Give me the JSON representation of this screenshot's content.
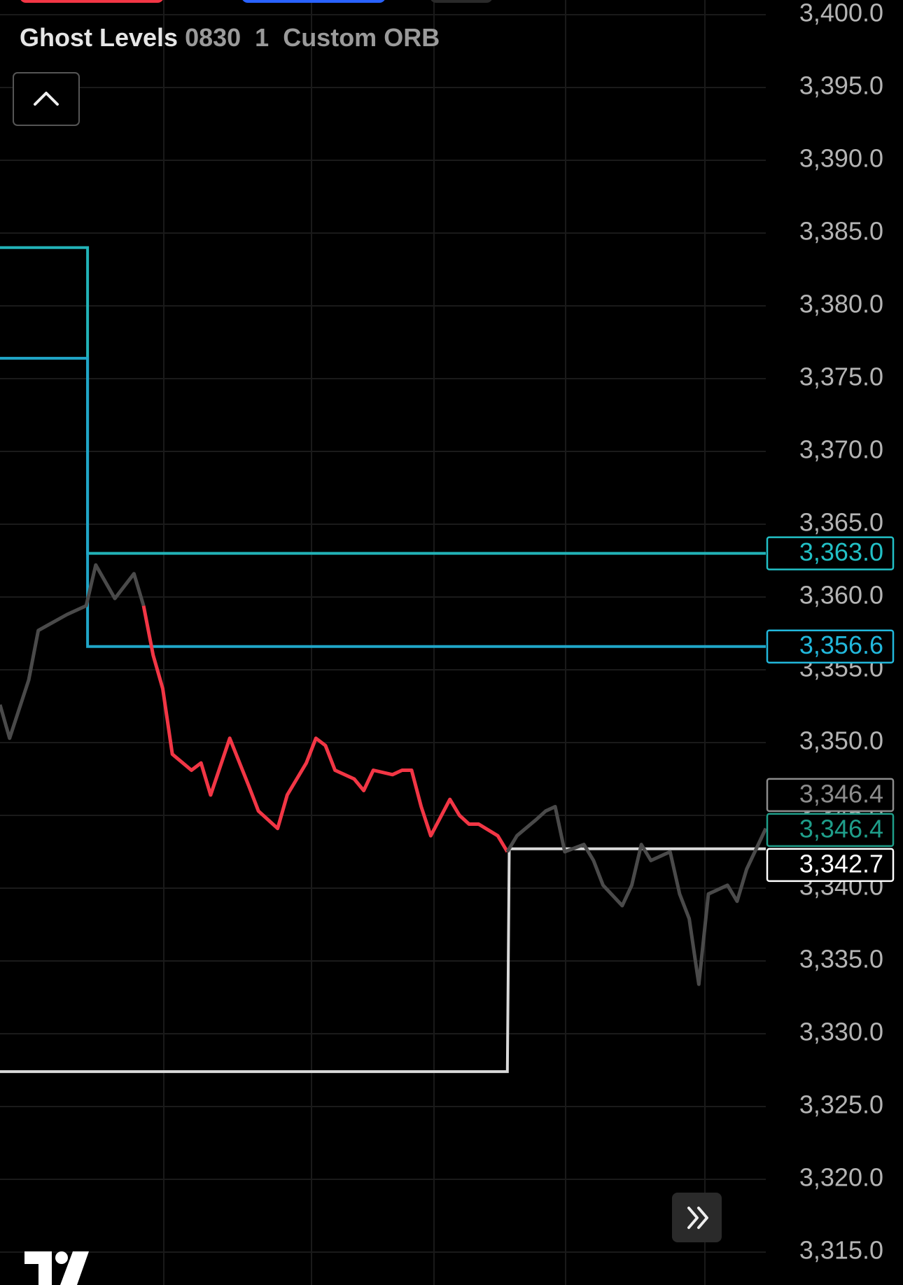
{
  "chart_data": {
    "type": "line",
    "indicator_name": "Ghost Levels",
    "indicator_params": "0830  1  Custom ORB",
    "ylim": [
      3312.74,
      3401.01
    ],
    "xlim": [
      0,
      80
    ],
    "grid": true,
    "yticks": [
      {
        "value": 3400,
        "label": "3,400.0"
      },
      {
        "value": 3395,
        "label": "3,395.0"
      },
      {
        "value": 3390,
        "label": "3,390.0"
      },
      {
        "value": 3385,
        "label": "3,385.0"
      },
      {
        "value": 3380,
        "label": "3,380.0"
      },
      {
        "value": 3375,
        "label": "3,375.0"
      },
      {
        "value": 3370,
        "label": "3,370.0"
      },
      {
        "value": 3365,
        "label": "3,365.0"
      },
      {
        "value": 3360,
        "label": "3,360.0"
      },
      {
        "value": 3355,
        "label": "3,355.0"
      },
      {
        "value": 3350,
        "label": "3,350.0"
      },
      {
        "value": 3345,
        "label": "3,345.0"
      },
      {
        "value": 3340,
        "label": "3,340.0"
      },
      {
        "value": 3335,
        "label": "3,335.0"
      },
      {
        "value": 3330,
        "label": "3,330.0"
      },
      {
        "value": 3325,
        "label": "3,325.0"
      },
      {
        "value": 3320,
        "label": "3,320.0"
      },
      {
        "value": 3315,
        "label": "3,315.0"
      }
    ],
    "series": [
      {
        "color": "#4a4a4a",
        "x": [
          0,
          1,
          3,
          4,
          7,
          9,
          10,
          12,
          14,
          15
        ],
        "values": [
          3352.6,
          3350.3,
          3354.3,
          3357.7,
          3358.8,
          3359.4,
          3362.2,
          3359.9,
          3361.6,
          3359.4
        ]
      },
      {
        "color": "#f23645",
        "x": [
          15,
          16,
          17,
          18,
          20,
          21,
          22,
          24,
          26,
          27,
          29,
          30,
          32,
          33,
          34,
          35,
          37,
          38,
          39,
          41,
          42,
          43,
          44,
          45,
          47,
          48,
          49,
          50,
          52,
          53
        ],
        "values": [
          3359.4,
          3356.0,
          3353.7,
          3349.2,
          3348.1,
          3348.6,
          3346.4,
          3350.3,
          3347.0,
          3345.3,
          3344.1,
          3346.4,
          3348.6,
          3350.3,
          3349.8,
          3348.1,
          3347.5,
          3346.7,
          3348.1,
          3347.8,
          3348.1,
          3348.1,
          3345.6,
          3343.6,
          3346.1,
          3345.0,
          3344.4,
          3344.4,
          3343.6,
          3342.5
        ]
      },
      {
        "color": "#4a4a4a",
        "x": [
          53,
          54,
          56,
          57,
          58,
          59,
          61,
          62,
          63,
          65,
          66,
          67,
          68,
          70,
          71,
          72,
          73,
          74,
          76,
          77,
          78,
          80
        ],
        "values": [
          3342.5,
          3343.6,
          3344.7,
          3345.3,
          3345.6,
          3342.5,
          3343.0,
          3341.9,
          3340.2,
          3338.8,
          3340.2,
          3343.0,
          3341.9,
          3342.5,
          3339.6,
          3337.9,
          3333.4,
          3339.6,
          3340.2,
          3339.1,
          3341.3,
          3344.1
        ]
      }
    ],
    "levels": [
      {
        "color": "#22b3b8",
        "x": [
          0,
          9.15,
          9.15,
          80
        ],
        "values": [
          3384.0,
          3384.0,
          3363.0,
          3363.0
        ]
      },
      {
        "color": "#20a6c8",
        "x": [
          0,
          9.15,
          9.15,
          80
        ],
        "values": [
          3376.4,
          3376.4,
          3356.6,
          3356.6
        ]
      },
      {
        "color": "#d9d9d9",
        "x": [
          0,
          53.0,
          53.2,
          80
        ],
        "values": [
          3327.4,
          3327.4,
          3342.7,
          3342.7
        ]
      }
    ],
    "price_labels": [
      {
        "value": 3363.0,
        "label": "3,363.0",
        "color": "#22c0c6"
      },
      {
        "value": 3356.6,
        "label": "3,356.6",
        "color": "#22b8dc"
      },
      {
        "value": 3346.4,
        "label": "3,346.4",
        "color": "#8c8c8c"
      },
      {
        "value": 3346.4,
        "label": "3,346.4",
        "color": "#1f9e8a"
      },
      {
        "value": 3342.7,
        "label": "3,342.7",
        "color": "#ffffff"
      }
    ]
  }
}
